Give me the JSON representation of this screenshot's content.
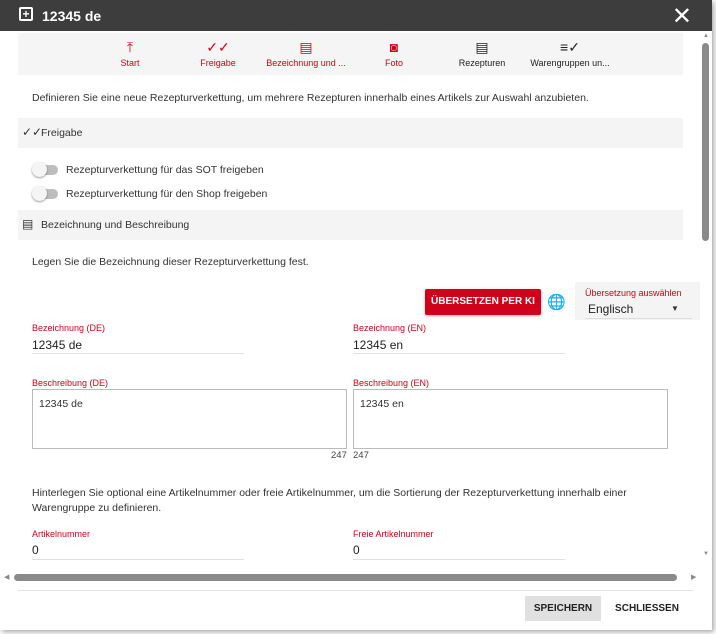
{
  "header": {
    "title": "12345 de",
    "icon": "library-add-icon",
    "close_icon": "close-icon"
  },
  "nav": [
    {
      "label": "Start",
      "icon": "arrow-up-to-top-icon",
      "color": "#d0021b"
    },
    {
      "label": "Freigabe",
      "icon": "double-check-icon",
      "color": "#d0021b"
    },
    {
      "label": "Bezeichnung und ...",
      "icon": "comment-icon",
      "color": "#d0021b"
    },
    {
      "label": "Foto",
      "icon": "camera-icon",
      "color": "#d0021b"
    },
    {
      "label": "Rezepturen",
      "icon": "list-box-icon",
      "color": "#222222"
    },
    {
      "label": "Warengruppen un...",
      "icon": "list-check-icon",
      "color": "#222222"
    }
  ],
  "intro": "Definieren Sie eine neue Rezepturverkettung, um mehrere Rezepturen innerhalb eines Artikels zur Auswahl anzubieten.",
  "freigabe": {
    "title": "Freigabe",
    "toggles": [
      {
        "label": "Rezepturverkettung für das SOT freigeben",
        "on": false
      },
      {
        "label": "Rezepturverkettung für den Shop freigeben",
        "on": false
      }
    ]
  },
  "bezeichnung": {
    "title": "Bezeichnung und Beschreibung",
    "text": "Legen Sie die Bezeichnung dieser Rezepturverkettung fest.",
    "translate_button": "ÜBERSETZEN PER KI",
    "select_label": "Übersetzung auswählen",
    "select_value": "Englisch",
    "name_de_label": "Bezeichnung (DE)",
    "name_de": "12345 de",
    "name_en_label": "Bezeichnung (EN)",
    "name_en": "12345 en",
    "desc_de_label": "Beschreibung (DE)",
    "desc_de": "12345 de",
    "desc_de_count": "247",
    "desc_en_label": "Beschreibung (EN)",
    "desc_en": "12345 en",
    "desc_en_count": "247"
  },
  "artikel": {
    "text": "Hinterlegen Sie optional eine Artikelnummer oder freie Artikelnummer, um die Sortierung der Rezepturverkettung innerhalb einer Warengruppe zu definieren.",
    "nr_label": "Artikelnummer",
    "nr": "0",
    "free_label": "Freie Artikelnummer",
    "free": "0"
  },
  "footer": {
    "save": "SPEICHERN",
    "close": "SCHLIESSEN"
  },
  "colors": {
    "accent": "#d0021b",
    "header": "#3d3d3d"
  }
}
